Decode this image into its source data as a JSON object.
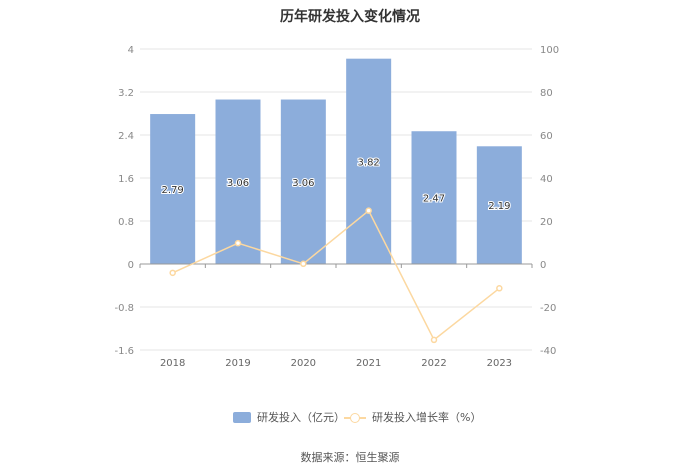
{
  "title": "历年研发投入变化情况",
  "legend": {
    "bar_label": "研发投入（亿元）",
    "line_label": "研发投入增长率（%）"
  },
  "source": "数据来源：恒生聚源",
  "colors": {
    "bar": "#8caddb",
    "line": "#fcd8a0",
    "grid": "#e6e6e6",
    "axis": "#999999"
  },
  "chart_data": {
    "type": "bar",
    "categories": [
      "2018",
      "2019",
      "2020",
      "2021",
      "2022",
      "2023"
    ],
    "series": [
      {
        "name": "研发投入（亿元）",
        "type": "bar",
        "axis": "left",
        "values": [
          2.79,
          3.06,
          3.06,
          3.82,
          2.47,
          2.19
        ]
      },
      {
        "name": "研发投入增长率（%）",
        "type": "line",
        "axis": "right",
        "values": [
          -4.1,
          9.7,
          0.1,
          24.8,
          -35.3,
          -11.3
        ]
      }
    ],
    "data_labels": [
      "2.79",
      "3.06",
      "3.06",
      "3.82",
      "2.47",
      "2.19"
    ],
    "y_left": {
      "ticks": [
        "4",
        "3.2",
        "2.4",
        "1.6",
        "0.8",
        "0",
        "-0.8",
        "-1.6"
      ],
      "ylim": [
        -1.6,
        4
      ]
    },
    "y_right": {
      "ticks": [
        "100",
        "80",
        "60",
        "40",
        "20",
        "0",
        "-20",
        "-40"
      ],
      "ylim": [
        -40,
        100
      ]
    },
    "grid": true,
    "legend_position": "bottom"
  }
}
